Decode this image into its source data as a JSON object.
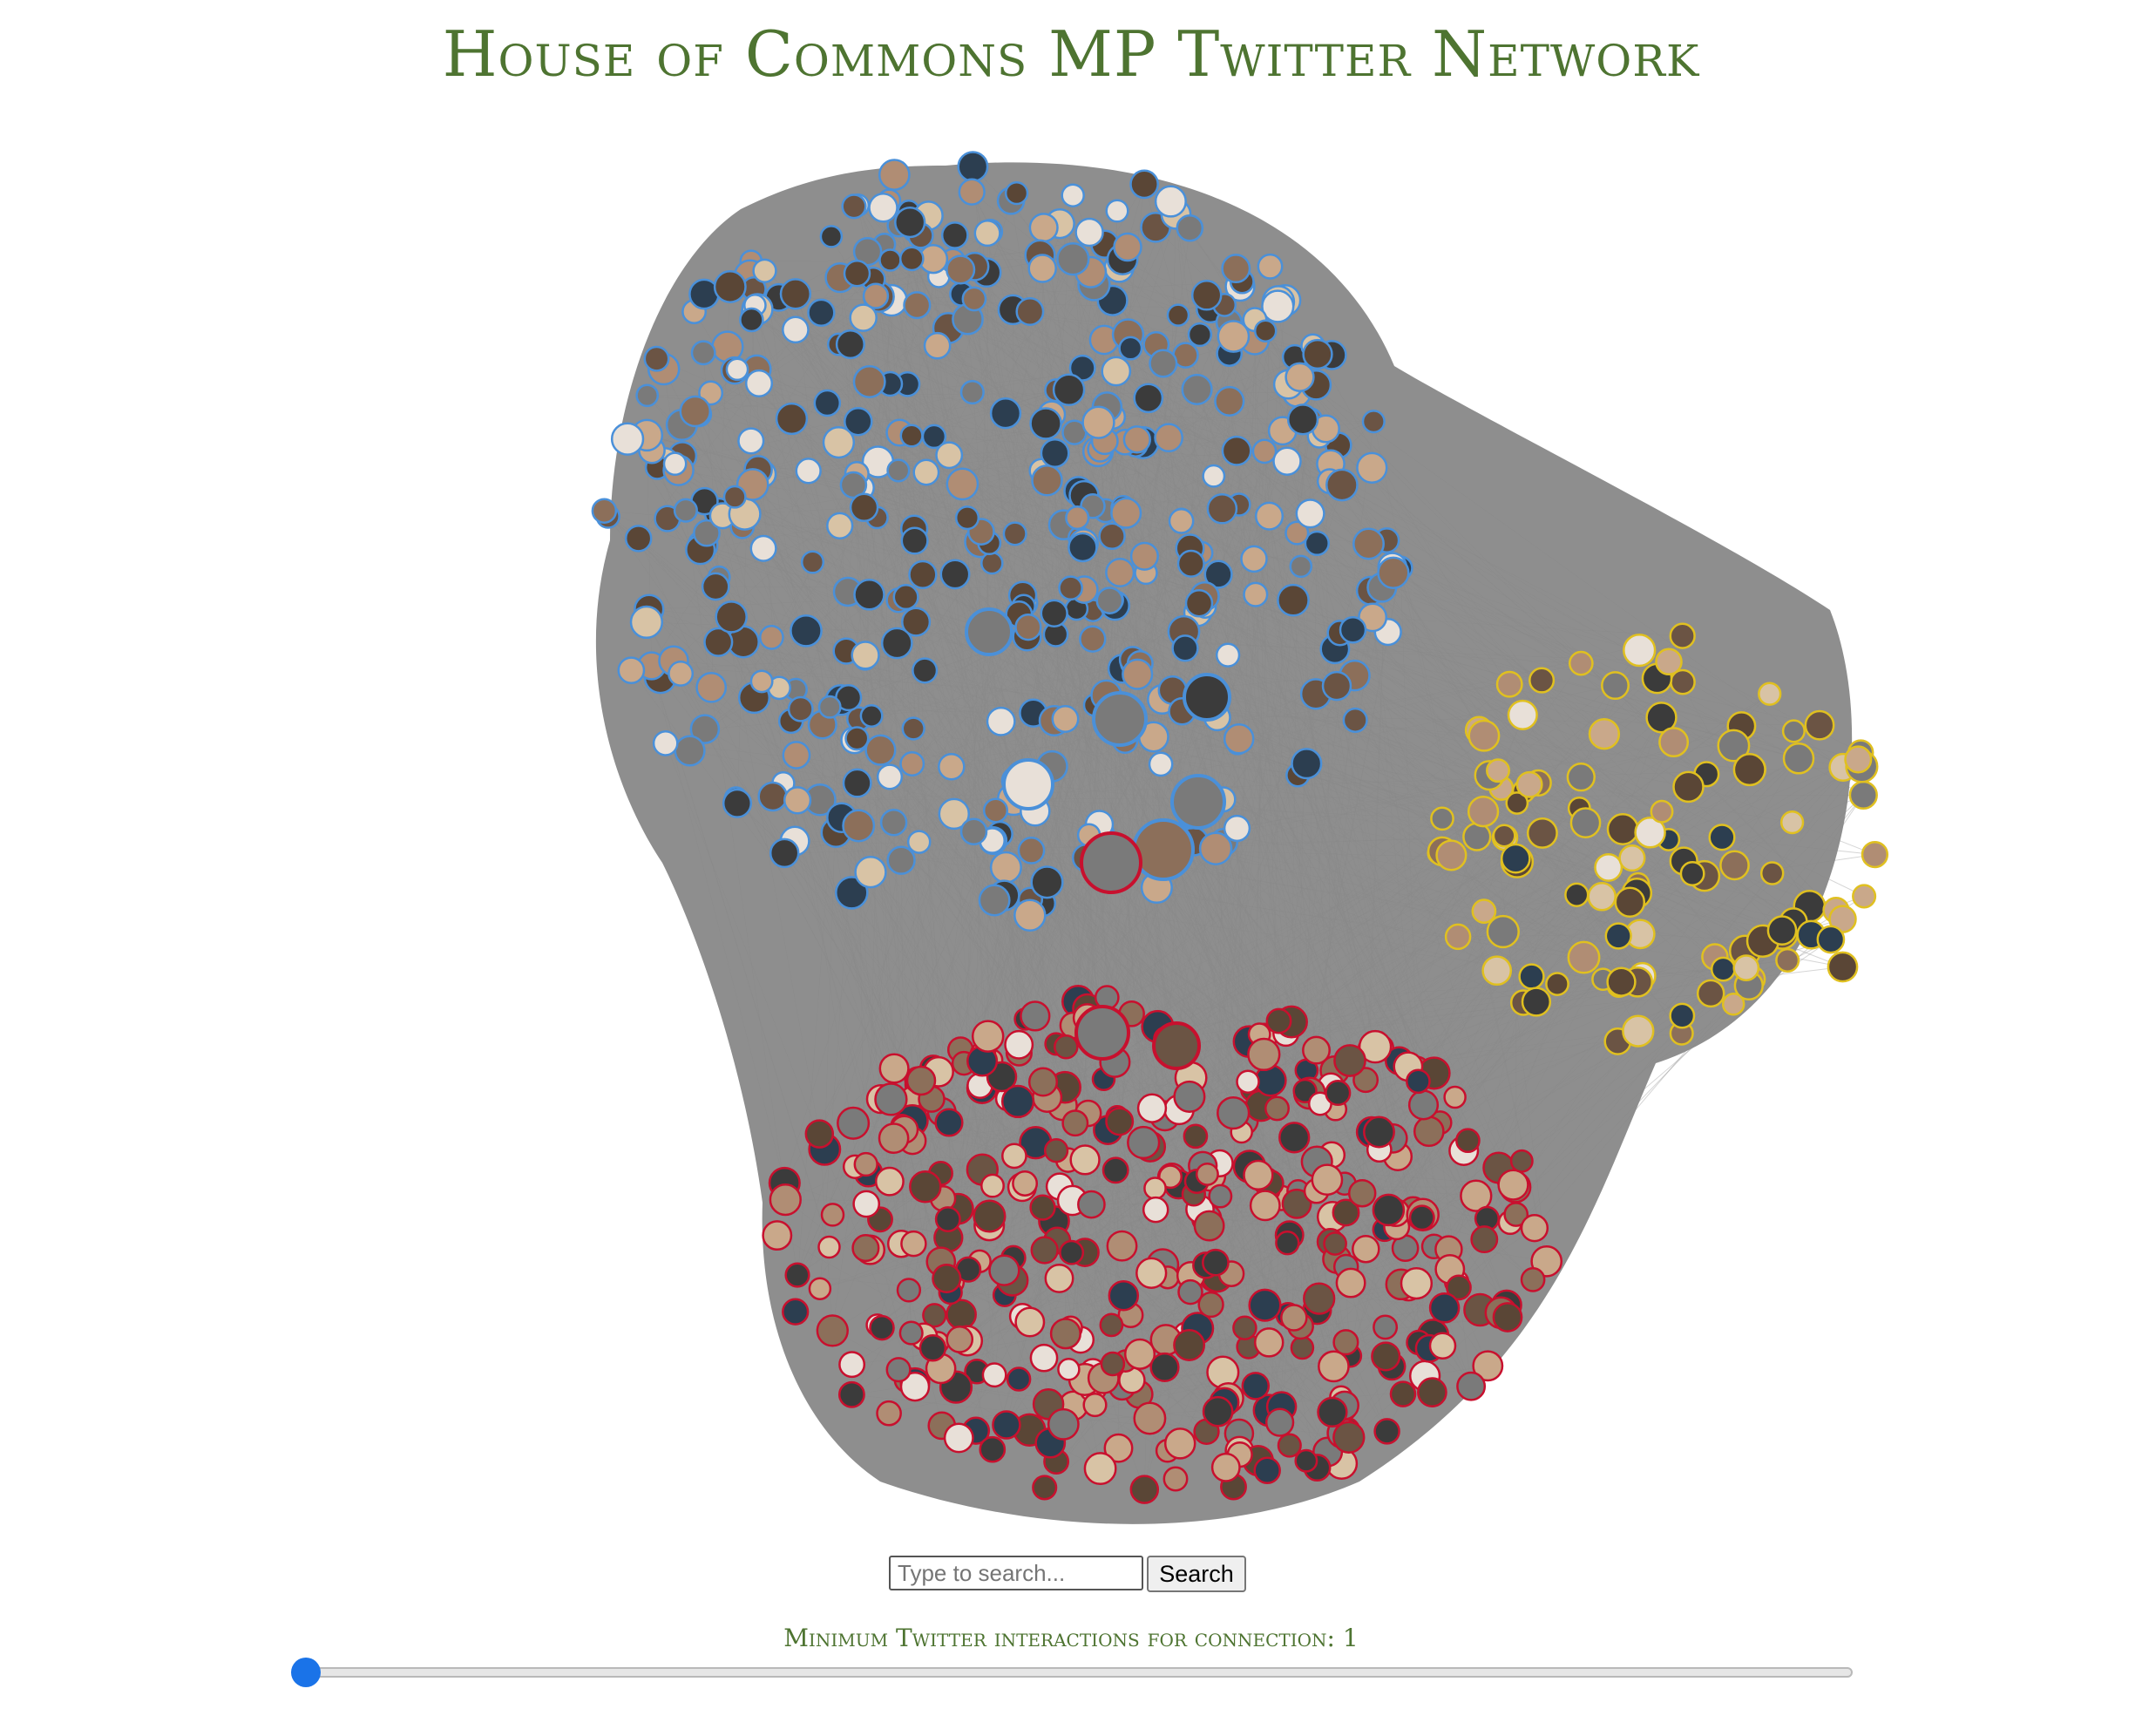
{
  "page": {
    "title": "House of Commons MP Twitter Network"
  },
  "network": {
    "edge_color": "#888888",
    "party_colors": {
      "conservative": "#4a90d9",
      "labour": "#c8102e",
      "snp": "#e0c020",
      "other": "#2e8b57"
    },
    "groups": [
      "conservative",
      "labour",
      "snp"
    ]
  },
  "search": {
    "placeholder": "Type to search...",
    "button_label": "Search"
  },
  "slider": {
    "label": "Minimum Twitter interactions for connection:",
    "value": "1",
    "min": 1,
    "max": 100
  }
}
